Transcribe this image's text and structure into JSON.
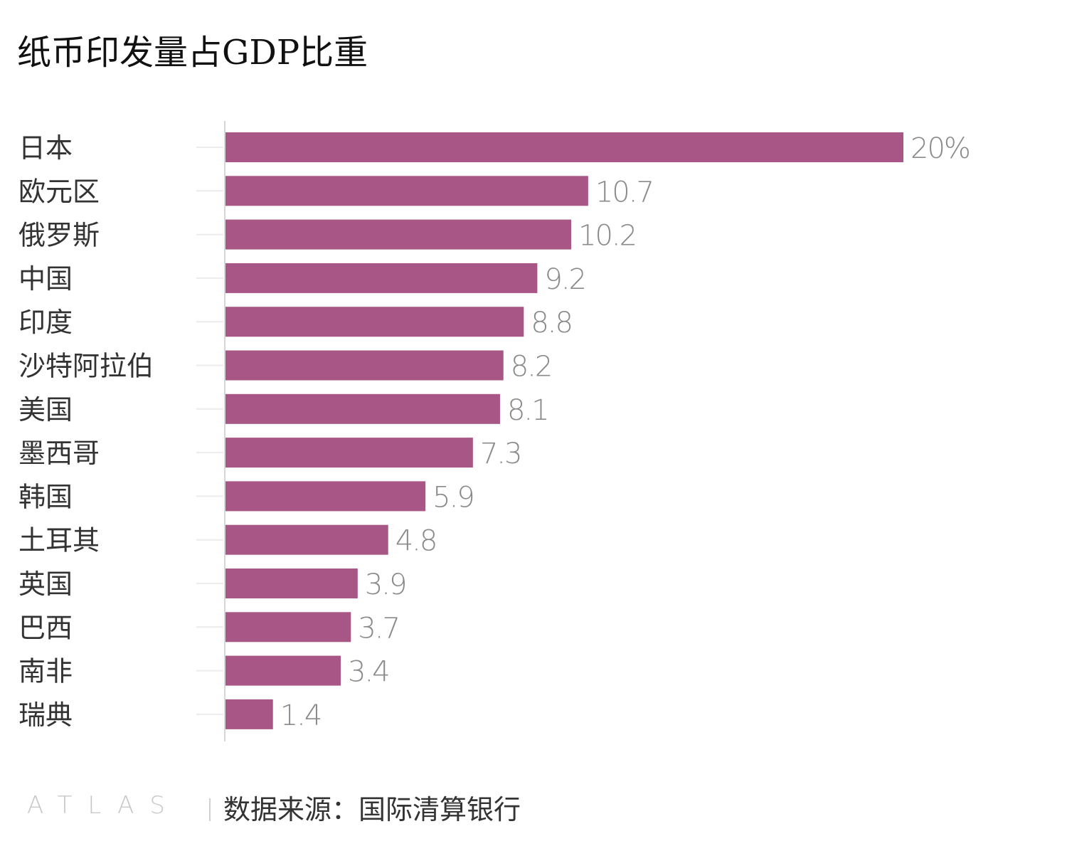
{
  "chart_data": {
    "type": "bar",
    "orientation": "horizontal",
    "title": "纸币印发量占GDP比重",
    "categories": [
      "日本",
      "欧元区",
      "俄罗斯",
      "中国",
      "印度",
      "沙特阿拉伯",
      "美国",
      "墨西哥",
      "韩国",
      "土耳其",
      "英国",
      "巴西",
      "南非",
      "瑞典"
    ],
    "values": [
      20,
      10.7,
      10.2,
      9.2,
      8.8,
      8.2,
      8.1,
      7.3,
      5.9,
      4.8,
      3.9,
      3.7,
      3.4,
      1.4
    ],
    "value_labels": [
      "20%",
      "10.7",
      "10.2",
      "9.2",
      "8.8",
      "8.2",
      "8.1",
      "7.3",
      "5.9",
      "4.8",
      "3.9",
      "3.7",
      "3.4",
      "1.4"
    ],
    "unit": "%",
    "xlabel": "",
    "ylabel": "",
    "xlim": [
      0,
      20
    ],
    "grid": false,
    "bar_color": "#a85685",
    "label_color": "#8a8a8a",
    "category_color": "#333333"
  },
  "footer": {
    "logo": "ATLAS",
    "source": "数据来源：国际清算银行"
  }
}
